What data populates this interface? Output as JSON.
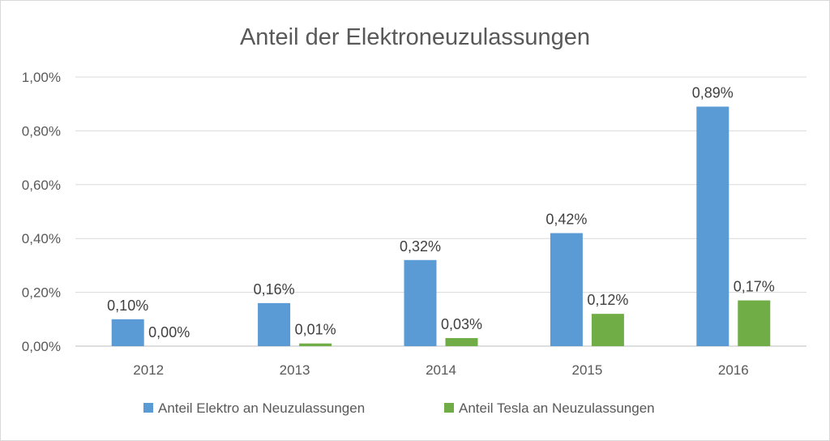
{
  "chart_data": {
    "type": "bar",
    "title": "Anteil der Elektroneuzulassungen",
    "xlabel": "",
    "ylabel": "",
    "categories": [
      "2012",
      "2013",
      "2014",
      "2015",
      "2016"
    ],
    "ylim": [
      0,
      1.0
    ],
    "yticks": [
      0,
      0.2,
      0.4,
      0.6,
      0.8,
      1.0
    ],
    "ytick_labels": [
      "0,00%",
      "0,20%",
      "0,40%",
      "0,60%",
      "0,80%",
      "1,00%"
    ],
    "grid": true,
    "legend_position": "bottom",
    "series": [
      {
        "name": "Anteil Elektro an Neuzulassungen",
        "color": "#5b9bd5",
        "values": [
          0.1,
          0.16,
          0.32,
          0.42,
          0.89
        ],
        "labels": [
          "0,10%",
          "0,16%",
          "0,32%",
          "0,42%",
          "0,89%"
        ]
      },
      {
        "name": "Anteil Tesla an Neuzulassungen",
        "color": "#70ad47",
        "values": [
          0.0,
          0.01,
          0.03,
          0.12,
          0.17
        ],
        "labels": [
          "0,00%",
          "0,01%",
          "0,03%",
          "0,12%",
          "0,17%"
        ]
      }
    ]
  }
}
